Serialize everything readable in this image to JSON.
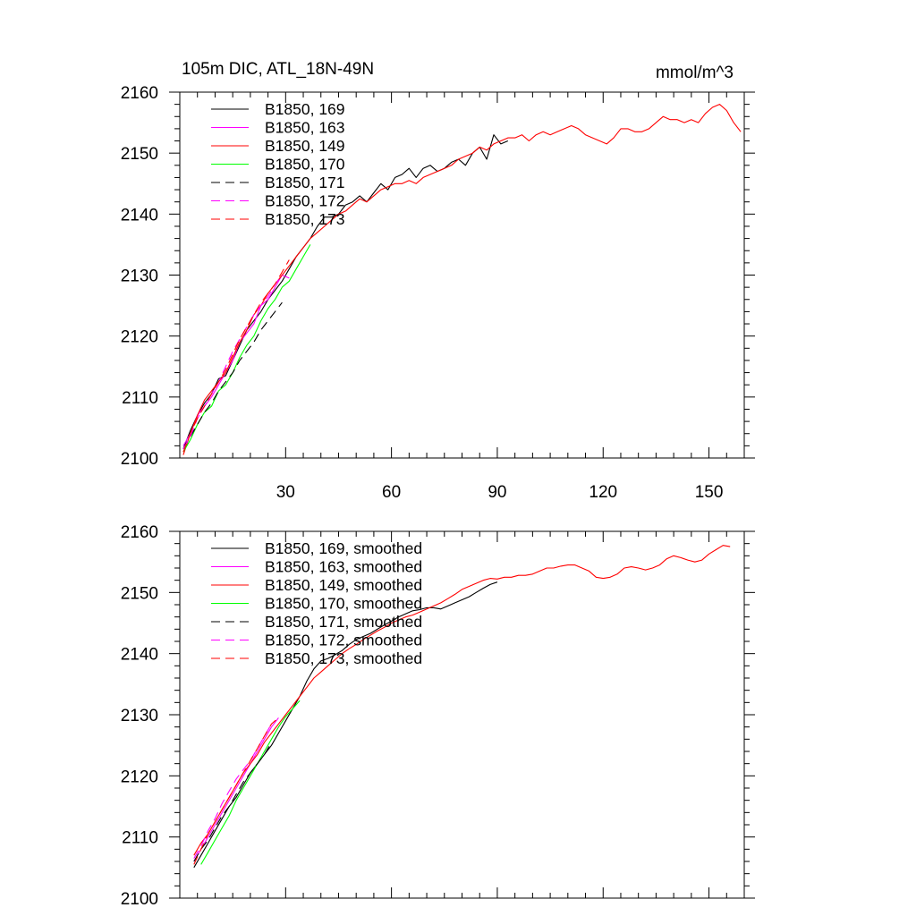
{
  "chart_data": [
    {
      "type": "line",
      "title": "105m DIC, ATL_18N-49N",
      "units": "mmol/m^3",
      "xlabel": "",
      "ylabel": "",
      "xlim": [
        0,
        160
      ],
      "ylim": [
        2100,
        2160
      ],
      "x_ticks": [
        30,
        60,
        90,
        120,
        150
      ],
      "y_ticks": [
        2100,
        2110,
        2120,
        2130,
        2140,
        2150,
        2160
      ],
      "grid": false,
      "legend_position": "top-left",
      "series": [
        {
          "name": "B1850, 169",
          "color": "#000000",
          "dash": "solid",
          "x": [
            1,
            3,
            5,
            7,
            9,
            11,
            13,
            15,
            17,
            19,
            21,
            23,
            25,
            27,
            29,
            31,
            33,
            35,
            37,
            39,
            41,
            43,
            45,
            47,
            49,
            51,
            53,
            55,
            57,
            59,
            61,
            63,
            65,
            67,
            69,
            71,
            73,
            75,
            77,
            79,
            81,
            83,
            85,
            87,
            89,
            91,
            93
          ],
          "y": [
            2101.5,
            2104.5,
            2107.0,
            2109.0,
            2110.5,
            2113.0,
            2113.5,
            2116.0,
            2118.5,
            2121.0,
            2122.5,
            2124.0,
            2126.0,
            2127.5,
            2129.0,
            2131.0,
            2133.0,
            2134.5,
            2136.0,
            2138.0,
            2139.5,
            2139.5,
            2140.0,
            2141.5,
            2142.0,
            2143.0,
            2142.0,
            2143.5,
            2145.0,
            2144.0,
            2146.0,
            2146.5,
            2147.5,
            2146.0,
            2147.5,
            2148.0,
            2147.0,
            2147.5,
            2148.5,
            2149.0,
            2148.0,
            2150.0,
            2151.0,
            2149.0,
            2153.0,
            2151.5,
            2152.0
          ]
        },
        {
          "name": "B1850, 163",
          "color": "#ff00ff",
          "dash": "solid",
          "x": [
            1,
            3,
            5,
            7,
            9,
            11,
            13,
            15,
            17,
            19,
            21,
            23,
            25,
            27,
            29,
            31
          ],
          "y": [
            2102.0,
            2104.0,
            2107.0,
            2108.5,
            2110.0,
            2112.0,
            2114.0,
            2116.0,
            2119.0,
            2120.5,
            2122.0,
            2125.0,
            2126.0,
            2128.0,
            2130.0,
            2129.5
          ]
        },
        {
          "name": "B1850, 149",
          "color": "#ff0000",
          "dash": "solid",
          "x": [
            1,
            3,
            5,
            7,
            9,
            11,
            13,
            15,
            17,
            19,
            21,
            23,
            25,
            27,
            29,
            31,
            33,
            35,
            37,
            39,
            41,
            43,
            45,
            47,
            49,
            51,
            53,
            55,
            57,
            59,
            61,
            63,
            65,
            67,
            69,
            71,
            73,
            75,
            77,
            79,
            81,
            83,
            85,
            87,
            89,
            91,
            93,
            95,
            97,
            99,
            101,
            103,
            105,
            107,
            109,
            111,
            113,
            115,
            117,
            119,
            121,
            123,
            125,
            127,
            129,
            131,
            133,
            135,
            137,
            139,
            141,
            143,
            145,
            147,
            149,
            151,
            153,
            155,
            157,
            159
          ],
          "y": [
            2100.5,
            2104.0,
            2107.0,
            2109.5,
            2111.0,
            2112.5,
            2114.0,
            2116.5,
            2119.0,
            2121.0,
            2123.5,
            2125.0,
            2127.0,
            2128.5,
            2130.0,
            2131.5,
            2133.0,
            2134.5,
            2136.0,
            2137.0,
            2138.0,
            2139.0,
            2140.0,
            2140.5,
            2141.5,
            2142.5,
            2142.0,
            2143.0,
            2144.0,
            2144.5,
            2145.0,
            2145.0,
            2145.5,
            2145.0,
            2146.0,
            2146.5,
            2147.0,
            2147.5,
            2148.0,
            2149.0,
            2149.5,
            2150.0,
            2151.0,
            2150.5,
            2151.5,
            2152.0,
            2152.5,
            2152.5,
            2153.0,
            2152.0,
            2153.0,
            2153.5,
            2153.0,
            2153.5,
            2154.0,
            2154.5,
            2154.0,
            2153.0,
            2152.5,
            2152.0,
            2151.5,
            2152.5,
            2154.0,
            2154.0,
            2153.5,
            2153.5,
            2154.0,
            2155.0,
            2156.0,
            2155.5,
            2155.5,
            2155.0,
            2155.5,
            2155.0,
            2156.5,
            2157.5,
            2158.0,
            2157.0,
            2155.0,
            2153.5
          ]
        },
        {
          "name": "B1850, 170",
          "color": "#00ff00",
          "dash": "solid",
          "x": [
            1,
            3,
            5,
            7,
            9,
            11,
            13,
            15,
            17,
            19,
            21,
            23,
            25,
            27,
            29,
            31,
            33,
            35,
            37
          ],
          "y": [
            2101.0,
            2103.0,
            2105.5,
            2107.5,
            2108.5,
            2111.0,
            2112.0,
            2114.0,
            2116.5,
            2118.5,
            2120.0,
            2122.5,
            2124.5,
            2126.0,
            2128.0,
            2129.0,
            2131.0,
            2133.0,
            2135.0
          ]
        },
        {
          "name": "B1850, 171",
          "color": "#000000",
          "dash": "dashed",
          "x": [
            1,
            3,
            5,
            7,
            9,
            11,
            13,
            15,
            17,
            19,
            21,
            23,
            25,
            27,
            29
          ],
          "y": [
            2101.5,
            2103.5,
            2105.5,
            2107.5,
            2109.0,
            2111.0,
            2112.5,
            2114.0,
            2116.0,
            2117.5,
            2119.0,
            2121.0,
            2122.5,
            2124.0,
            2125.5
          ]
        },
        {
          "name": "B1850, 172",
          "color": "#ff00ff",
          "dash": "dashed",
          "x": [
            1,
            3,
            5,
            7,
            9,
            11,
            13,
            15,
            17,
            19,
            21,
            23,
            25,
            27,
            29
          ],
          "y": [
            2101.5,
            2103.5,
            2106.5,
            2108.5,
            2110.5,
            2112.5,
            2115.0,
            2117.5,
            2119.5,
            2121.5,
            2123.5,
            2125.0,
            2126.5,
            2128.5,
            2130.0
          ]
        },
        {
          "name": "B1850, 173",
          "color": "#ff0000",
          "dash": "dashed",
          "x": [
            1,
            3,
            5,
            7,
            9,
            11,
            13,
            15,
            17,
            19,
            21,
            23,
            25,
            27,
            29,
            31
          ],
          "y": [
            2101.0,
            2104.0,
            2106.5,
            2108.5,
            2110.5,
            2112.5,
            2114.5,
            2117.0,
            2119.5,
            2121.5,
            2123.5,
            2125.5,
            2127.0,
            2128.5,
            2130.5,
            2132.5
          ]
        }
      ]
    },
    {
      "type": "line",
      "title": "",
      "xlabel": "",
      "ylabel": "",
      "xlim": [
        0,
        160
      ],
      "ylim": [
        2100,
        2160
      ],
      "x_ticks": [
        30,
        60,
        90,
        120,
        150
      ],
      "y_ticks": [
        2100,
        2110,
        2120,
        2130,
        2140,
        2150,
        2160
      ],
      "grid": false,
      "legend_position": "top-left",
      "series": [
        {
          "name": "B1850, 169, smoothed",
          "color": "#000000",
          "dash": "solid",
          "x": [
            4,
            6,
            8,
            10,
            12,
            14,
            16,
            18,
            20,
            22,
            24,
            26,
            28,
            30,
            32,
            34,
            36,
            38,
            40,
            42,
            44,
            46,
            48,
            50,
            52,
            54,
            56,
            58,
            60,
            62,
            64,
            66,
            68,
            70,
            72,
            74,
            76,
            78,
            80,
            82,
            84,
            86,
            88,
            90
          ],
          "y": [
            2105.0,
            2107.0,
            2109.0,
            2111.0,
            2113.0,
            2115.0,
            2116.5,
            2118.5,
            2120.5,
            2122.0,
            2123.5,
            2125.0,
            2127.0,
            2129.0,
            2131.0,
            2133.0,
            2135.5,
            2137.5,
            2138.8,
            2139.2,
            2139.8,
            2140.5,
            2141.5,
            2142.3,
            2142.8,
            2143.3,
            2144.0,
            2144.7,
            2145.3,
            2146.0,
            2146.5,
            2147.0,
            2147.2,
            2147.5,
            2147.5,
            2147.3,
            2147.8,
            2148.3,
            2148.8,
            2149.3,
            2150.0,
            2150.7,
            2151.3,
            2151.7
          ]
        },
        {
          "name": "B1850, 163, smoothed",
          "color": "#ff00ff",
          "dash": "solid",
          "x": [
            4,
            6,
            8,
            10,
            12,
            14,
            16,
            18,
            20,
            22,
            24,
            26,
            28
          ],
          "y": [
            2106.0,
            2108.0,
            2110.0,
            2112.0,
            2114.0,
            2116.0,
            2118.0,
            2120.0,
            2122.0,
            2124.0,
            2126.0,
            2128.0,
            2129.5
          ]
        },
        {
          "name": "B1850, 149, smoothed",
          "color": "#ff0000",
          "dash": "solid",
          "x": [
            4,
            6,
            8,
            10,
            12,
            14,
            16,
            18,
            20,
            22,
            24,
            26,
            28,
            30,
            32,
            34,
            36,
            38,
            40,
            42,
            44,
            46,
            48,
            50,
            52,
            54,
            56,
            58,
            60,
            62,
            64,
            66,
            68,
            70,
            72,
            74,
            76,
            78,
            80,
            82,
            84,
            86,
            88,
            90,
            92,
            94,
            96,
            98,
            100,
            102,
            104,
            106,
            108,
            110,
            112,
            114,
            116,
            118,
            120,
            122,
            124,
            126,
            128,
            130,
            132,
            134,
            136,
            138,
            140,
            142,
            144,
            146,
            148,
            150,
            152,
            154,
            156
          ],
          "y": [
            2107.0,
            2109.0,
            2110.5,
            2112.5,
            2114.5,
            2116.5,
            2118.5,
            2120.5,
            2122.0,
            2123.5,
            2125.5,
            2127.0,
            2128.5,
            2130.0,
            2131.5,
            2133.0,
            2134.5,
            2136.0,
            2137.0,
            2138.0,
            2139.0,
            2140.0,
            2140.8,
            2141.5,
            2142.3,
            2143.0,
            2143.7,
            2144.3,
            2145.0,
            2145.5,
            2146.0,
            2146.3,
            2146.8,
            2147.3,
            2147.8,
            2148.3,
            2149.0,
            2149.7,
            2150.5,
            2151.0,
            2151.5,
            2152.0,
            2152.3,
            2152.2,
            2152.5,
            2152.5,
            2152.8,
            2152.8,
            2153.0,
            2153.5,
            2154.0,
            2154.0,
            2154.3,
            2154.5,
            2154.5,
            2154.0,
            2153.5,
            2152.5,
            2152.3,
            2152.5,
            2153.0,
            2154.0,
            2154.2,
            2154.0,
            2153.7,
            2154.0,
            2154.5,
            2155.5,
            2156.0,
            2155.7,
            2155.3,
            2155.0,
            2155.3,
            2156.3,
            2157.0,
            2157.7,
            2157.5
          ]
        },
        {
          "name": "B1850, 170, smoothed",
          "color": "#00ff00",
          "dash": "solid",
          "x": [
            6,
            8,
            10,
            12,
            14,
            16,
            18,
            20,
            22,
            24,
            26,
            28,
            30,
            32,
            34
          ],
          "y": [
            2105.5,
            2107.5,
            2109.5,
            2111.5,
            2113.5,
            2116.0,
            2118.0,
            2120.0,
            2122.0,
            2124.0,
            2126.0,
            2128.0,
            2129.7,
            2131.0,
            2132.3
          ]
        },
        {
          "name": "B1850, 171, smoothed",
          "color": "#000000",
          "dash": "dashed",
          "x": [
            4,
            6,
            8,
            10,
            12,
            14,
            16,
            18,
            20,
            22,
            24,
            26
          ],
          "y": [
            2106.0,
            2108.0,
            2109.5,
            2111.5,
            2113.5,
            2115.0,
            2117.0,
            2119.0,
            2120.5,
            2122.0,
            2123.5,
            2125.5
          ]
        },
        {
          "name": "B1850, 172, smoothed",
          "color": "#ff00ff",
          "dash": "dashed",
          "x": [
            4,
            6,
            8,
            10,
            12,
            14,
            16,
            18,
            20,
            22,
            24,
            26
          ],
          "y": [
            2106.5,
            2108.5,
            2111.0,
            2113.0,
            2115.5,
            2117.5,
            2119.5,
            2121.0,
            2122.5,
            2124.5,
            2126.5,
            2128.5
          ]
        },
        {
          "name": "B1850, 173, smoothed",
          "color": "#ff0000",
          "dash": "dashed",
          "x": [
            4,
            6,
            8,
            10,
            12,
            14,
            16,
            18,
            20,
            22,
            24,
            26,
            28
          ],
          "y": [
            2105.5,
            2108.0,
            2110.5,
            2112.5,
            2114.5,
            2116.5,
            2118.5,
            2120.5,
            2122.5,
            2124.5,
            2126.5,
            2128.5,
            2129.5
          ]
        }
      ]
    }
  ]
}
